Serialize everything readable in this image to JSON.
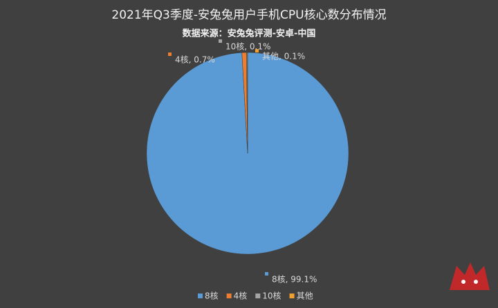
{
  "chart_data": {
    "type": "pie",
    "title": "2021年Q3季度-安兔兔用户手机CPU核心数分布情况",
    "subtitle": "数据来源：安兔兔评测-安卓-中国",
    "categories": [
      "8核",
      "4核",
      "10核",
      "其他"
    ],
    "values": [
      99.1,
      0.7,
      0.1,
      0.1
    ],
    "value_labels": [
      "8核, 99.1%",
      "4核, 0.7%",
      "10核, 0.1%",
      "其他, 0.1%"
    ],
    "colors": [
      "#5b9bd5",
      "#ed7d31",
      "#a5a5a5",
      "#f0a030"
    ],
    "legend": "bottom"
  }
}
